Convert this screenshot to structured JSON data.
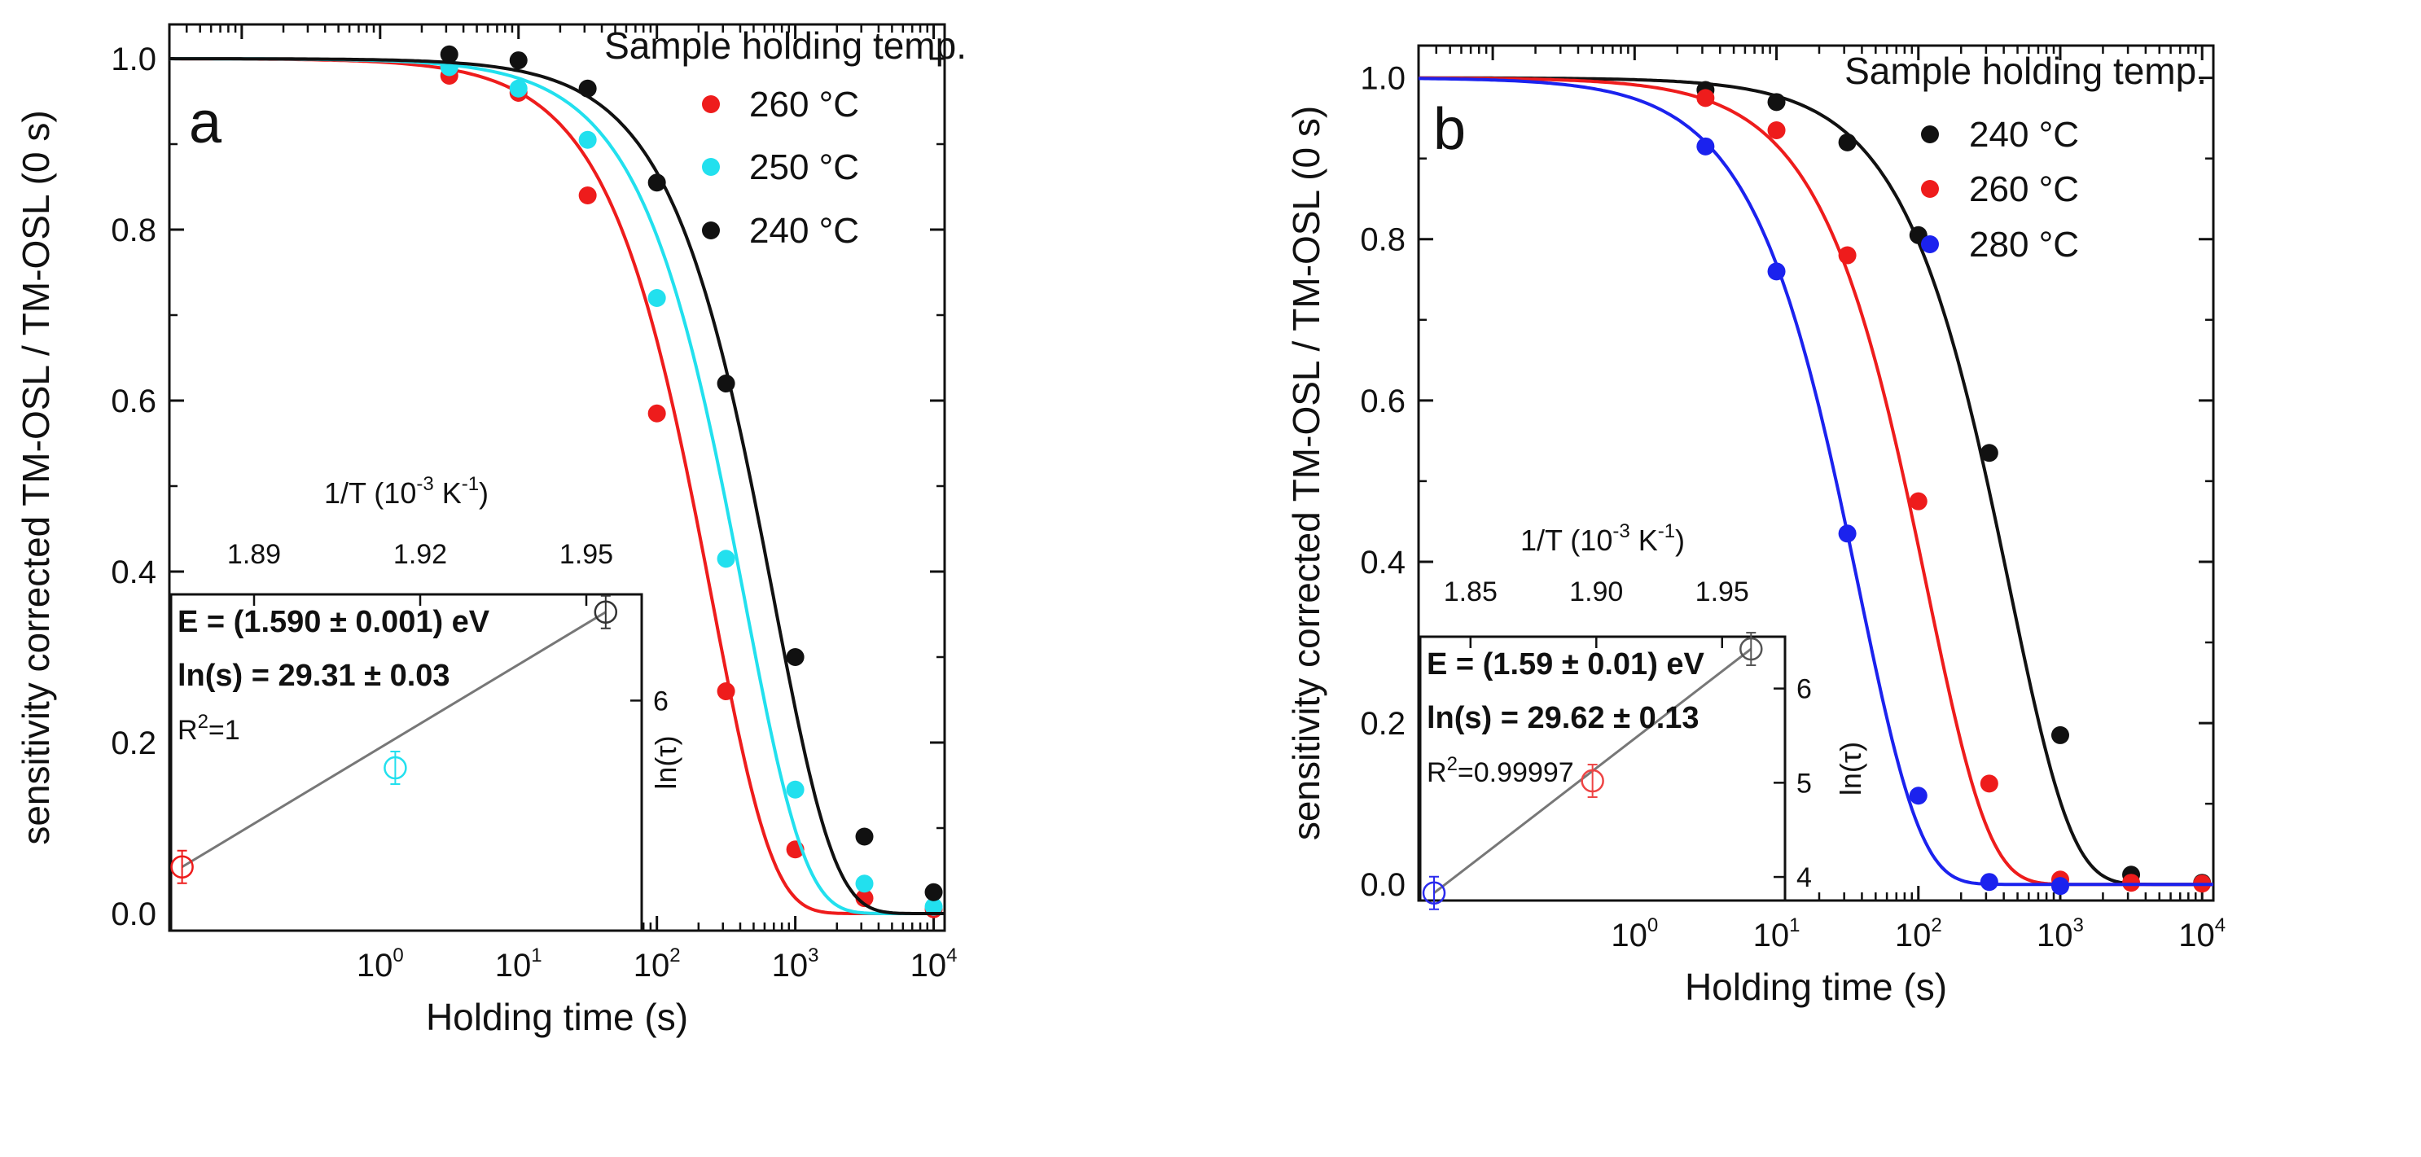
{
  "chart_data": [
    {
      "panel": "a",
      "type": "scatter",
      "title": "",
      "xlabel": "Holding time (s)",
      "ylabel": "sensitivity corrected TM-OSL / TM-OSL (0 s)",
      "xscale": "log",
      "xlim": [
        0.03,
        12000
      ],
      "ylim": [
        -0.02,
        1.04
      ],
      "x_ticks": [
        {
          "value": 1,
          "base": "10",
          "exp": "0"
        },
        {
          "value": 10,
          "base": "10",
          "exp": "1"
        },
        {
          "value": 100,
          "base": "10",
          "exp": "2"
        },
        {
          "value": 1000,
          "base": "10",
          "exp": "3"
        },
        {
          "value": 10000,
          "base": "10",
          "exp": "4"
        }
      ],
      "y_ticks": [
        "0.0",
        "0.2",
        "0.4",
        "0.6",
        "0.8",
        "1.0"
      ],
      "legend_title": "Sample holding temp.",
      "legend_position": "top-right",
      "series": [
        {
          "name": "260 °C",
          "color": "#ee1c1c",
          "fit_tau": 250,
          "x": [
            3.16,
            10,
            31.6,
            100,
            316,
            1000,
            3160,
            10000
          ],
          "y": [
            0.98,
            0.96,
            0.84,
            0.585,
            0.26,
            0.075,
            0.018,
            0.005
          ]
        },
        {
          "name": "250 °C",
          "color": "#22e0ee",
          "fit_tau": 430,
          "x": [
            3.16,
            10,
            31.6,
            100,
            316,
            1000,
            3160,
            10000
          ],
          "y": [
            0.99,
            0.965,
            0.905,
            0.72,
            0.415,
            0.145,
            0.035,
            0.008
          ]
        },
        {
          "name": "240 °C",
          "color": "#111111",
          "fit_tau": 700,
          "x": [
            3.16,
            10,
            31.6,
            100,
            316,
            1000,
            3160,
            10000
          ],
          "y": [
            1.005,
            0.998,
            0.965,
            0.855,
            0.62,
            0.3,
            0.09,
            0.025
          ]
        }
      ],
      "inset": {
        "xlabel": "1/T (10",
        "xlabel_exp": "-3",
        "xlabel_unit": " K",
        "xlabel_unit_exp": "-1",
        "xlabel_close": ")",
        "ylabel": "ln(τ)",
        "xlim": [
          1.875,
          1.96
        ],
        "ylim": [
          5.35,
          6.3
        ],
        "x_ticks": [
          "1.89",
          "1.92",
          "1.95"
        ],
        "y_ticks": [
          "6"
        ],
        "annotation_E": "E = (1.590 ± 0.001) eV",
        "annotation_lns": "ln(s) = 29.31 ± 0.03",
        "r2_label": "R",
        "r2_exp": "2",
        "r2_value": "=1",
        "points": [
          {
            "x": 1.877,
            "y": 5.53,
            "color": "#ee1c1c"
          },
          {
            "x": 1.9155,
            "y": 5.81,
            "color": "#22e0ee"
          },
          {
            "x": 1.9535,
            "y": 6.25,
            "color": "#333333"
          }
        ]
      }
    },
    {
      "panel": "b",
      "type": "scatter",
      "title": "",
      "xlabel": "Holding time (s)",
      "ylabel": "sensitivity corrected TM-OSL / TM-OSL (0 s)",
      "xscale": "log",
      "xlim": [
        0.03,
        12000
      ],
      "ylim": [
        -0.02,
        1.04
      ],
      "x_ticks": [
        {
          "value": 1,
          "base": "10",
          "exp": "0"
        },
        {
          "value": 10,
          "base": "10",
          "exp": "1"
        },
        {
          "value": 100,
          "base": "10",
          "exp": "2"
        },
        {
          "value": 1000,
          "base": "10",
          "exp": "3"
        },
        {
          "value": 10000,
          "base": "10",
          "exp": "4"
        }
      ],
      "y_ticks": [
        "0.0",
        "0.2",
        "0.4",
        "0.6",
        "0.8",
        "1.0"
      ],
      "legend_title": "Sample holding temp.",
      "legend_position": "top-right",
      "series": [
        {
          "name": "240 °C",
          "color": "#111111",
          "fit_tau": 440,
          "x": [
            3.16,
            10,
            31.6,
            100,
            316,
            1000,
            3160,
            10000
          ],
          "y": [
            0.985,
            0.97,
            0.92,
            0.805,
            0.535,
            0.185,
            0.012,
            0.002
          ]
        },
        {
          "name": "260 °C",
          "color": "#ee1c1c",
          "fit_tau": 115,
          "x": [
            3.16,
            10,
            31.6,
            100,
            316,
            1000,
            3160,
            10000
          ],
          "y": [
            0.975,
            0.935,
            0.78,
            0.475,
            0.125,
            0.006,
            0.002,
            0.001
          ]
        },
        {
          "name": "280 °C",
          "color": "#1b22ee",
          "fit_tau": 38,
          "x": [
            3.16,
            10,
            31.6,
            100,
            316,
            1000
          ],
          "y": [
            0.915,
            0.76,
            0.435,
            0.11,
            0.003,
            -0.002
          ]
        }
      ],
      "inset": {
        "xlabel": "1/T (10",
        "xlabel_exp": "-3",
        "xlabel_unit": " K",
        "xlabel_unit_exp": "-1",
        "xlabel_close": ")",
        "ylabel": "ln(τ)",
        "xlim": [
          1.83,
          1.975
        ],
        "ylim": [
          3.75,
          6.55
        ],
        "x_ticks": [
          "1.85",
          "1.90",
          "1.95"
        ],
        "y_ticks": [
          "4",
          "5",
          "6"
        ],
        "annotation_E": "E = (1.59 ± 0.01) eV",
        "annotation_lns": "ln(s) = 29.62 ± 0.13",
        "r2_label": "R",
        "r2_exp": "2",
        "r2_value": "=0.99997",
        "points": [
          {
            "x": 1.8355,
            "y": 3.83,
            "color": "#2b2bee"
          },
          {
            "x": 1.8985,
            "y": 5.02,
            "color": "#ee4444"
          },
          {
            "x": 1.9615,
            "y": 6.42,
            "color": "#555555"
          }
        ]
      }
    }
  ]
}
